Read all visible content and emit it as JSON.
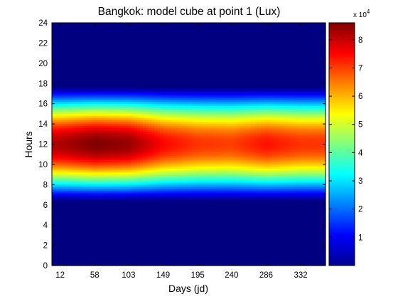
{
  "chart_data": {
    "type": "heatmap",
    "title": "Bangkok: model cube at point 1 (Lux)",
    "xlabel": "Days (jd)",
    "ylabel": "Hours",
    "x": [
      12,
      58,
      103,
      149,
      195,
      240,
      286,
      332
    ],
    "xticks": [
      12,
      58,
      103,
      149,
      195,
      240,
      286,
      332
    ],
    "xlim": [
      1,
      365
    ],
    "yticks": [
      0,
      2,
      4,
      6,
      8,
      10,
      12,
      14,
      16,
      18,
      20,
      22,
      24
    ],
    "ylim": [
      0,
      24
    ],
    "colorbar": {
      "ticks": [
        1,
        2,
        3,
        4,
        5,
        6,
        7,
        8
      ],
      "exponent_label": "x 10",
      "exponent": "4",
      "range": [
        0,
        86000
      ],
      "colormap": "jet"
    },
    "estimated_profile": {
      "description": "Illuminance (Lux) peaks at solar noon; daylight between about 6 and 18 hours.",
      "peak_by_day_lux": [
        82000,
        86000,
        84000,
        75000,
        71000,
        70000,
        74000,
        71000
      ],
      "peak_hour": 12
    }
  }
}
